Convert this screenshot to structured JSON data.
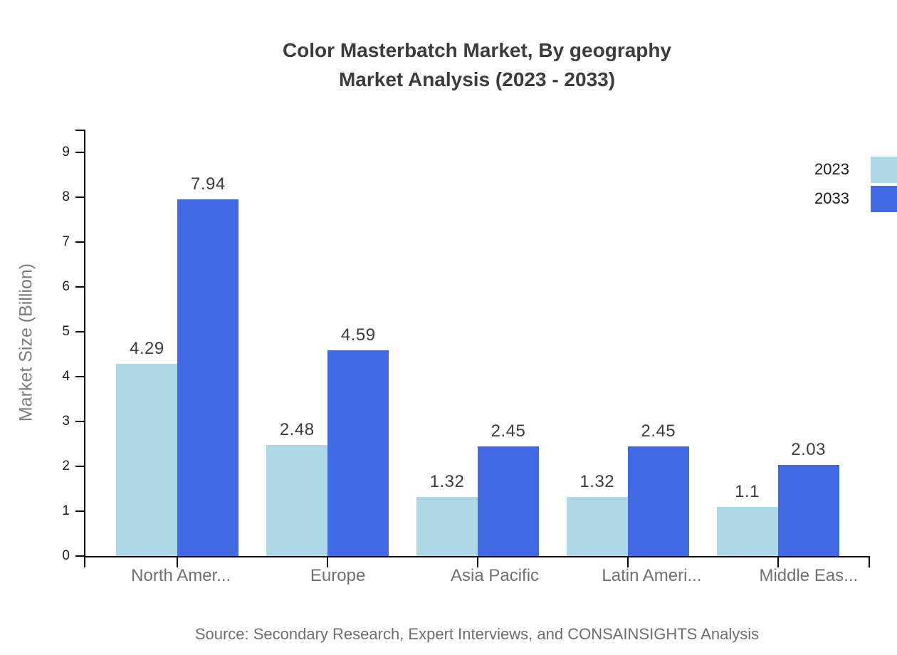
{
  "title": {
    "line1": "Color Masterbatch Market, By geography",
    "line2": "Market Analysis (2023 - 2033)"
  },
  "source": "Source: Secondary Research, Expert Interviews, and CONSAINSIGHTS Analysis",
  "colors": {
    "series_2023": "#ADD8E6",
    "series_2033": "#4169E1",
    "axis": "#000000"
  },
  "legend": {
    "items": [
      {
        "label": "2023",
        "color": "#ADD8E6"
      },
      {
        "label": "2033",
        "color": "#4169E1"
      }
    ]
  },
  "chart_data": {
    "type": "bar",
    "title": "Color Masterbatch Market, By geography Market Analysis (2023 - 2033)",
    "xlabel": "",
    "ylabel": "Market Size (Billion)",
    "categories": [
      "North Amer...",
      "Europe",
      "Asia Pacific",
      "Latin Ameri...",
      "Middle Eas..."
    ],
    "series": [
      {
        "name": "2023",
        "color": "#ADD8E6",
        "values": [
          4.29,
          2.48,
          1.32,
          1.32,
          1.1
        ]
      },
      {
        "name": "2033",
        "color": "#4169E1",
        "values": [
          7.94,
          4.59,
          2.45,
          2.45,
          2.03
        ]
      }
    ],
    "value_labels": [
      [
        "4.29",
        "2.48",
        "1.32",
        "1.32",
        "1.1"
      ],
      [
        "7.94",
        "4.59",
        "2.45",
        "2.45",
        "2.03"
      ]
    ],
    "ylim": [
      0,
      9.5
    ],
    "yticks": [
      0,
      1,
      2,
      3,
      4,
      5,
      6,
      7,
      8,
      9
    ],
    "grid": false,
    "legend_position": "top-right"
  }
}
